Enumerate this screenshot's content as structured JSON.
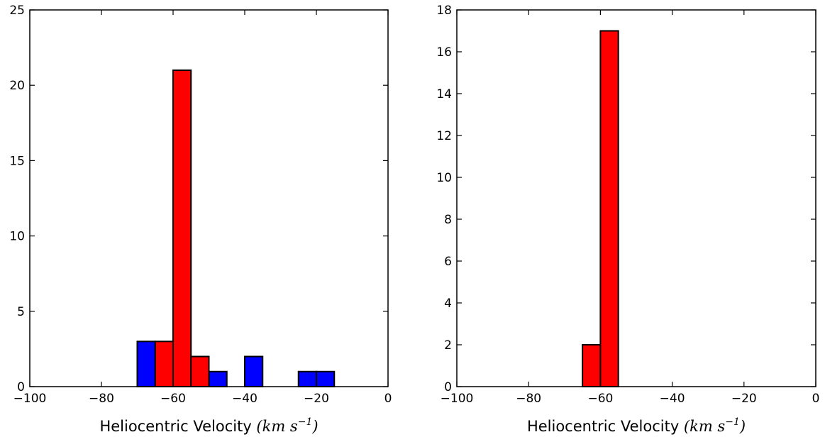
{
  "chart_data": [
    {
      "type": "bar",
      "title": "",
      "xlabel": "Heliocentric Velocity",
      "xlabel_math": "(km s",
      "xlabel_exp": "−1",
      "xlabel_close": ")",
      "xlim": [
        -100,
        0
      ],
      "ylim": [
        0,
        25
      ],
      "xticks": [
        -100,
        -80,
        -60,
        -40,
        -20,
        0
      ],
      "yticks": [
        0,
        5,
        10,
        15,
        20,
        25
      ],
      "xtick_labels": [
        "−100",
        "−80",
        "−60",
        "−40",
        "−20",
        "0"
      ],
      "ytick_labels": [
        "0",
        "5",
        "10",
        "15",
        "20",
        "25"
      ],
      "grid": false,
      "bars": [
        {
          "x0": -70,
          "x1": -65,
          "value": 3,
          "color": "#0000ff"
        },
        {
          "x0": -65,
          "x1": -60,
          "value": 3,
          "color": "#ff0000"
        },
        {
          "x0": -60,
          "x1": -55,
          "value": 21,
          "color": "#ff0000"
        },
        {
          "x0": -55,
          "x1": -50,
          "value": 2,
          "color": "#ff0000"
        },
        {
          "x0": -50,
          "x1": -45,
          "value": 1,
          "color": "#0000ff"
        },
        {
          "x0": -40,
          "x1": -35,
          "value": 2,
          "color": "#0000ff"
        },
        {
          "x0": -25,
          "x1": -20,
          "value": 1,
          "color": "#0000ff"
        },
        {
          "x0": -20,
          "x1": -15,
          "value": 1,
          "color": "#0000ff"
        }
      ]
    },
    {
      "type": "bar",
      "title": "",
      "xlabel": "Heliocentric Velocity",
      "xlabel_math": "(km s",
      "xlabel_exp": "−1",
      "xlabel_close": ")",
      "xlim": [
        -100,
        0
      ],
      "ylim": [
        0,
        18
      ],
      "xticks": [
        -100,
        -80,
        -60,
        -40,
        -20,
        0
      ],
      "yticks": [
        0,
        2,
        4,
        6,
        8,
        10,
        12,
        14,
        16,
        18
      ],
      "xtick_labels": [
        "−100",
        "−80",
        "−60",
        "−40",
        "−20",
        "0"
      ],
      "ytick_labels": [
        "0",
        "2",
        "4",
        "6",
        "8",
        "10",
        "12",
        "14",
        "16",
        "18"
      ],
      "grid": false,
      "bars": [
        {
          "x0": -65,
          "x1": -60,
          "value": 2,
          "color": "#ff0000"
        },
        {
          "x0": -60,
          "x1": -55,
          "value": 17,
          "color": "#ff0000"
        }
      ]
    }
  ]
}
